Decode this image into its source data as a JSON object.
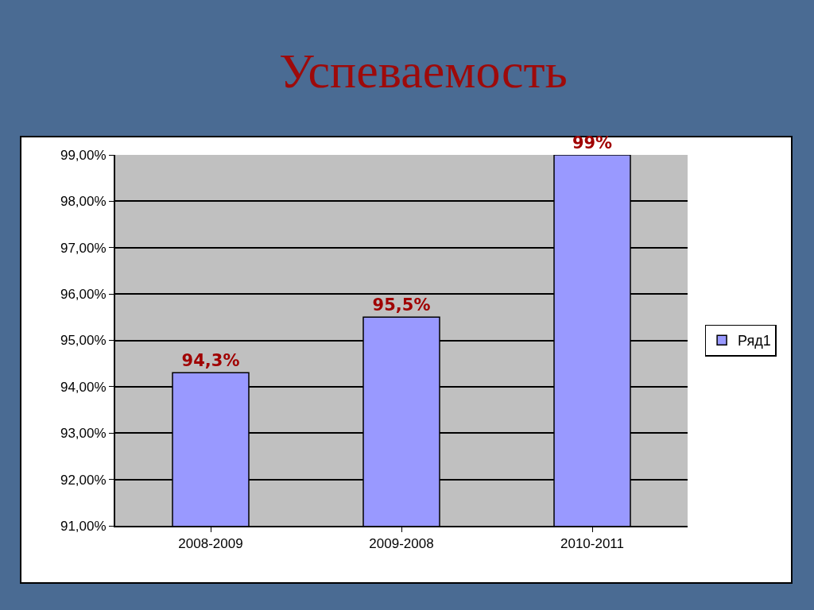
{
  "chart_data": {
    "type": "bar",
    "title": "Успеваемость",
    "categories": [
      "2008-2009",
      "2009-2008",
      "2010-2011"
    ],
    "series": [
      {
        "name": "Ряд1",
        "color": "#9999ff",
        "values": [
          94.3,
          95.5,
          99
        ],
        "value_labels": [
          "94,3%",
          "95,5%",
          "99%"
        ]
      }
    ],
    "ylim": [
      91,
      99
    ],
    "yticks": [
      {
        "value": 91,
        "label": "91,00%"
      },
      {
        "value": 92,
        "label": "92,00%"
      },
      {
        "value": 93,
        "label": "93,00%"
      },
      {
        "value": 94,
        "label": "94,00%"
      },
      {
        "value": 95,
        "label": "95,00%"
      },
      {
        "value": 96,
        "label": "96,00%"
      },
      {
        "value": 97,
        "label": "97,00%"
      },
      {
        "value": 98,
        "label": "98,00%"
      },
      {
        "value": 99,
        "label": "99,00%"
      }
    ],
    "grid": "y",
    "legend": "right"
  }
}
